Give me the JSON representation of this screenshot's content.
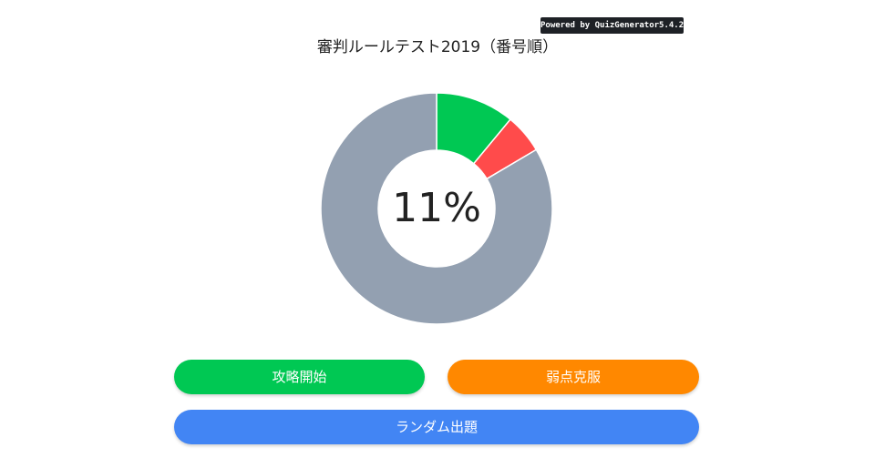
{
  "badge": {
    "text": "Powered by QuizGenerator5.4.2"
  },
  "title": "審判ルールテスト2019（番号順）",
  "chart_data": {
    "type": "pie",
    "center_label": "11%",
    "slices": [
      {
        "label": "",
        "value": 11,
        "color": "#00c853"
      },
      {
        "label": "",
        "value": 5.5,
        "color": "#ff4b4b"
      },
      {
        "label": "",
        "value": 83.5,
        "color": "#93a0b1"
      }
    ]
  },
  "buttons": {
    "start": {
      "label": "攻略開始",
      "color": "#00c853"
    },
    "weak": {
      "label": "弱点克服",
      "color": "#ff8800"
    },
    "random": {
      "label": "ランダム出題",
      "color": "#4285f4"
    }
  }
}
